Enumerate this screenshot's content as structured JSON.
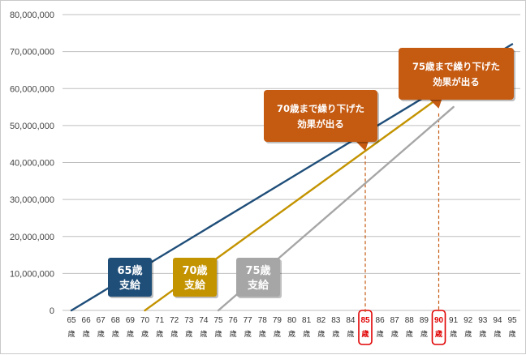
{
  "chart_data": {
    "type": "line",
    "x": [
      65,
      66,
      67,
      68,
      69,
      70,
      71,
      72,
      73,
      74,
      75,
      76,
      77,
      78,
      79,
      80,
      81,
      82,
      83,
      84,
      85,
      86,
      87,
      88,
      89,
      90,
      91,
      92,
      93,
      94,
      95
    ],
    "x_unit": "歳",
    "ylim": [
      0,
      80000000
    ],
    "y_ticks": [
      "0",
      "10,000,000",
      "20,000,000",
      "30,000,000",
      "40,000,000",
      "50,000,000",
      "60,000,000",
      "70,000,000",
      "80,000,000"
    ],
    "grid": true,
    "legend": "none",
    "series": [
      {
        "name": "65歳\n支給",
        "color": "#1f4e79",
        "points": [
          [
            65,
            0
          ],
          [
            95,
            72000000
          ]
        ]
      },
      {
        "name": "70歳\n支給",
        "color": "#c39300",
        "points": [
          [
            70,
            0
          ],
          [
            90,
            57500000
          ]
        ]
      },
      {
        "name": "75歳\n支給",
        "color": "#a6a6a6",
        "points": [
          [
            75,
            0
          ],
          [
            91,
            55000000
          ]
        ]
      }
    ],
    "series_labels": [
      {
        "line1": "65歳",
        "line2": "支給",
        "color": "#1f4e79"
      },
      {
        "line1": "70歳",
        "line2": "支給",
        "color": "#c39300"
      },
      {
        "line1": "75歳",
        "line2": "支給",
        "color": "#a6a6a6"
      }
    ],
    "highlight_x": [
      85,
      90
    ],
    "annotations": [
      {
        "line1": "70歳まで繰り下げた",
        "line2": "効果が出る",
        "x": 85,
        "y": 41800000,
        "color": "#c55a11"
      },
      {
        "line1": "75歳まで繰り下げた",
        "line2": "効果が出る",
        "x": 90,
        "y": 53300000,
        "color": "#c55a11"
      }
    ]
  }
}
